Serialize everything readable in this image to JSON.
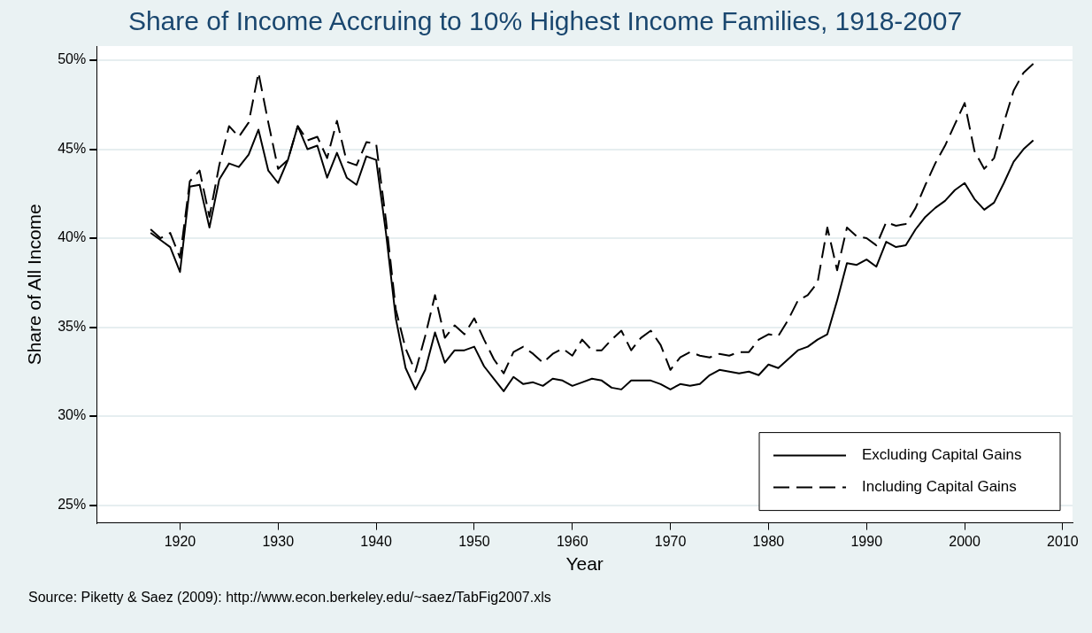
{
  "chart_data": {
    "type": "line",
    "title": "Share of Income Accruing to 10% Highest Income Families, 1918-2007",
    "xlabel": "Year",
    "ylabel": "Share of All Income",
    "x": [
      1917,
      1918,
      1919,
      1920,
      1921,
      1922,
      1923,
      1924,
      1925,
      1926,
      1927,
      1928,
      1929,
      1930,
      1931,
      1932,
      1933,
      1934,
      1935,
      1936,
      1937,
      1938,
      1939,
      1940,
      1941,
      1942,
      1943,
      1944,
      1945,
      1946,
      1947,
      1948,
      1949,
      1950,
      1951,
      1952,
      1953,
      1954,
      1955,
      1956,
      1957,
      1958,
      1959,
      1960,
      1961,
      1962,
      1963,
      1964,
      1965,
      1966,
      1967,
      1968,
      1969,
      1970,
      1971,
      1972,
      1973,
      1974,
      1975,
      1976,
      1977,
      1978,
      1979,
      1980,
      1981,
      1982,
      1983,
      1984,
      1985,
      1986,
      1987,
      1988,
      1989,
      1990,
      1991,
      1992,
      1993,
      1994,
      1995,
      1996,
      1997,
      1998,
      1999,
      2000,
      2001,
      2002,
      2003,
      2004,
      2005,
      2006,
      2007
    ],
    "series": [
      {
        "name": "Excluding Capital Gains",
        "color": "#000000",
        "line_style": "solid",
        "values": [
          40.3,
          39.9,
          39.5,
          38.1,
          42.9,
          43.0,
          40.6,
          43.3,
          44.2,
          44.0,
          44.7,
          46.1,
          43.8,
          43.1,
          44.4,
          46.3,
          45.0,
          45.2,
          43.4,
          44.8,
          43.4,
          43.0,
          44.6,
          44.4,
          40.3,
          35.5,
          32.7,
          31.5,
          32.6,
          34.7,
          33.0,
          33.7,
          33.7,
          33.9,
          32.8,
          32.1,
          31.4,
          32.2,
          31.8,
          31.9,
          31.7,
          32.1,
          32.0,
          31.7,
          31.9,
          32.1,
          32.0,
          31.6,
          31.5,
          32.0,
          32.0,
          32.0,
          31.8,
          31.5,
          31.8,
          31.7,
          31.8,
          32.3,
          32.6,
          32.5,
          32.4,
          32.5,
          32.3,
          32.9,
          32.7,
          33.2,
          33.7,
          33.9,
          34.3,
          34.6,
          36.5,
          38.6,
          38.5,
          38.8,
          38.4,
          39.8,
          39.5,
          39.6,
          40.5,
          41.2,
          41.7,
          42.1,
          42.7,
          43.1,
          42.2,
          41.6,
          42.0,
          43.1,
          44.3,
          45.0,
          45.5
        ]
      },
      {
        "name": "Including Capital Gains",
        "color": "#000000",
        "line_style": "dashed",
        "values": [
          40.5,
          40.0,
          40.3,
          38.9,
          43.2,
          43.8,
          41.2,
          44.1,
          46.3,
          45.7,
          46.5,
          49.3,
          46.5,
          43.9,
          44.4,
          46.3,
          45.5,
          45.7,
          44.5,
          46.6,
          44.3,
          44.1,
          45.4,
          45.3,
          41.0,
          36.0,
          33.8,
          32.5,
          34.5,
          36.8,
          34.4,
          35.1,
          34.6,
          35.5,
          34.3,
          33.2,
          32.4,
          33.6,
          33.9,
          33.5,
          33.0,
          33.5,
          33.8,
          33.4,
          34.3,
          33.7,
          33.7,
          34.3,
          34.8,
          33.7,
          34.4,
          34.8,
          34.0,
          32.6,
          33.3,
          33.6,
          33.4,
          33.3,
          33.5,
          33.4,
          33.6,
          33.6,
          34.3,
          34.6,
          34.5,
          35.4,
          36.5,
          36.8,
          37.5,
          40.6,
          38.2,
          40.6,
          40.1,
          40.0,
          39.6,
          40.9,
          40.7,
          40.8,
          41.7,
          43.0,
          44.2,
          45.2,
          46.4,
          47.6,
          44.9,
          43.9,
          44.5,
          46.5,
          48.3,
          49.3,
          49.8
        ]
      }
    ],
    "xlim": [
      1911.5,
      2011
    ],
    "xticks": [
      1920,
      1930,
      1940,
      1950,
      1960,
      1970,
      1980,
      1990,
      2000,
      2010
    ],
    "ylim": [
      24,
      50.8
    ],
    "yticks": [
      {
        "value": 25,
        "label": "25%"
      },
      {
        "value": 30,
        "label": "30%"
      },
      {
        "value": 35,
        "label": "35%"
      },
      {
        "value": 40,
        "label": "40%"
      },
      {
        "value": 45,
        "label": "45%"
      },
      {
        "value": 50,
        "label": "50%"
      }
    ],
    "grid": "y",
    "legend": "bottom right",
    "marker": "none",
    "annotations": [
      "Source: Piketty & Saez (2009): http://www.econ.berkeley.edu/~saez/TabFig2007.xls"
    ]
  }
}
